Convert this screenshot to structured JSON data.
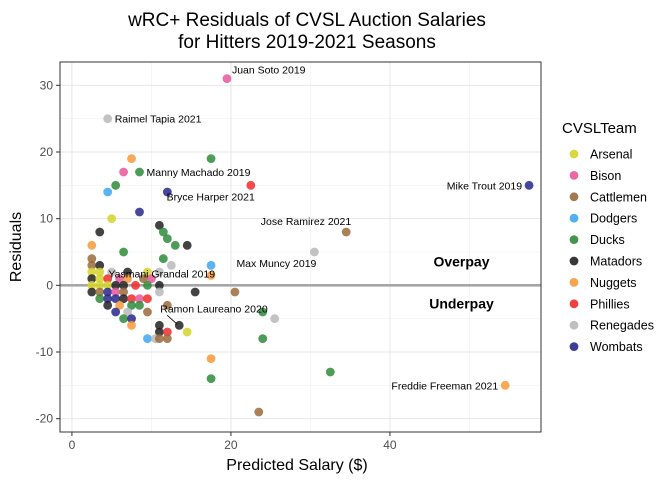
{
  "chart_data": {
    "type": "scatter",
    "title": "wRC+ Residuals of CVSL Auction Salaries",
    "subtitle": "for Hitters 2019-2021 Seasons",
    "xlabel": "Predicted Salary ($)",
    "ylabel": "Residuals",
    "xlim": [
      -1.5,
      59
    ],
    "ylim": [
      -22,
      33.5
    ],
    "x_ticks": [
      0,
      20,
      40
    ],
    "y_ticks": [
      -20,
      -10,
      0,
      10,
      20,
      30
    ],
    "grid": true,
    "reference_line_y": 0,
    "legend": {
      "title": "CVSLTeam",
      "placement": "right",
      "entries": [
        {
          "name": "Arsenal",
          "color": "#d4d42a"
        },
        {
          "name": "Bison",
          "color": "#e8579a"
        },
        {
          "name": "Cattlemen",
          "color": "#9b6a3c"
        },
        {
          "name": "Dodgers",
          "color": "#3fa6f0"
        },
        {
          "name": "Ducks",
          "color": "#2e8b3a"
        },
        {
          "name": "Matadors",
          "color": "#222222"
        },
        {
          "name": "Nuggets",
          "color": "#f59a3a"
        },
        {
          "name": "Phillies",
          "color": "#ee2b2b"
        },
        {
          "name": "Renegades",
          "color": "#b8b8b8"
        },
        {
          "name": "Wombats",
          "color": "#27288c"
        }
      ]
    },
    "zone_labels": [
      {
        "text": "Overpay",
        "x": 49,
        "y": 2.8
      },
      {
        "text": "Underpay",
        "x": 49,
        "y": -3.5
      }
    ],
    "points": [
      {
        "x": 19.5,
        "y": 31,
        "team": "Bison",
        "label": "Juan Soto 2019"
      },
      {
        "x": 4.5,
        "y": 25,
        "team": "Renegades",
        "label": "Raimel Tapia 2021"
      },
      {
        "x": 7.5,
        "y": 19,
        "team": "Nuggets"
      },
      {
        "x": 17.5,
        "y": 19,
        "team": "Ducks"
      },
      {
        "x": 6.5,
        "y": 17,
        "team": "Bison"
      },
      {
        "x": 8.5,
        "y": 17,
        "team": "Ducks",
        "label": "Manny Machado 2019"
      },
      {
        "x": 5.5,
        "y": 15,
        "team": "Ducks"
      },
      {
        "x": 4.5,
        "y": 14,
        "team": "Dodgers"
      },
      {
        "x": 12,
        "y": 14,
        "team": "Wombats"
      },
      {
        "x": 22.5,
        "y": 15,
        "team": "Phillies",
        "label": "Bryce Harper 2021"
      },
      {
        "x": 57.5,
        "y": 15,
        "team": "Wombats",
        "label": "Mike Trout 2019"
      },
      {
        "x": 8.5,
        "y": 11,
        "team": "Wombats"
      },
      {
        "x": 5,
        "y": 10,
        "team": "Arsenal"
      },
      {
        "x": 3.5,
        "y": 8,
        "team": "Matadors"
      },
      {
        "x": 11,
        "y": 9,
        "team": "Matadors"
      },
      {
        "x": 11.5,
        "y": 8,
        "team": "Ducks"
      },
      {
        "x": 12,
        "y": 7,
        "team": "Ducks"
      },
      {
        "x": 13,
        "y": 6,
        "team": "Ducks"
      },
      {
        "x": 14.5,
        "y": 6,
        "team": "Matadors"
      },
      {
        "x": 34.5,
        "y": 8,
        "team": "Cattlemen",
        "label": "Jose Ramirez 2021"
      },
      {
        "x": 2.5,
        "y": 6,
        "team": "Nuggets"
      },
      {
        "x": 6.5,
        "y": 5,
        "team": "Ducks"
      },
      {
        "x": 30.5,
        "y": 5,
        "team": "Renegades",
        "label": "Max Muncy 2019"
      },
      {
        "x": 2.5,
        "y": 4,
        "team": "Cattlemen"
      },
      {
        "x": 2.5,
        "y": 3,
        "team": "Cattlemen"
      },
      {
        "x": 3.5,
        "y": 3,
        "team": "Matadors"
      },
      {
        "x": 11.5,
        "y": 4,
        "team": "Ducks"
      },
      {
        "x": 12.5,
        "y": 3,
        "team": "Renegades"
      },
      {
        "x": 17.5,
        "y": 3,
        "team": "Dodgers"
      },
      {
        "x": 2.5,
        "y": 2,
        "team": "Arsenal"
      },
      {
        "x": 3.5,
        "y": 2,
        "team": "Arsenal"
      },
      {
        "x": 5,
        "y": 2,
        "team": "Renegades"
      },
      {
        "x": 7,
        "y": 2,
        "team": "Matadors"
      },
      {
        "x": 9.5,
        "y": 2,
        "team": "Arsenal"
      },
      {
        "x": 11,
        "y": 2,
        "team": "Renegades"
      },
      {
        "x": 17.5,
        "y": 1.5,
        "team": "Nuggets",
        "label": "Yasmani Grandal 2019"
      },
      {
        "x": 2.5,
        "y": 1,
        "team": "Matadors"
      },
      {
        "x": 3.5,
        "y": 1,
        "team": "Arsenal"
      },
      {
        "x": 4.5,
        "y": 1,
        "team": "Phillies"
      },
      {
        "x": 6,
        "y": 1,
        "team": "Bison"
      },
      {
        "x": 7,
        "y": 1,
        "team": "Nuggets"
      },
      {
        "x": 9,
        "y": 1,
        "team": "Cattlemen"
      },
      {
        "x": 10,
        "y": 1,
        "team": "Bison"
      },
      {
        "x": 2.5,
        "y": 0,
        "team": "Arsenal"
      },
      {
        "x": 3.5,
        "y": 0,
        "team": "Arsenal"
      },
      {
        "x": 4.5,
        "y": 0,
        "team": "Arsenal"
      },
      {
        "x": 5.5,
        "y": 0,
        "team": "Matadors"
      },
      {
        "x": 6.5,
        "y": 0,
        "team": "Matadors"
      },
      {
        "x": 8,
        "y": 0,
        "team": "Phillies"
      },
      {
        "x": 9.5,
        "y": 0,
        "team": "Ducks"
      },
      {
        "x": 11,
        "y": 0,
        "team": "Matadors"
      },
      {
        "x": 2.5,
        "y": -1,
        "team": "Matadors"
      },
      {
        "x": 3.5,
        "y": -1,
        "team": "Cattlemen"
      },
      {
        "x": 4.5,
        "y": -1,
        "team": "Wombats"
      },
      {
        "x": 5.5,
        "y": -1,
        "team": "Bison"
      },
      {
        "x": 6.5,
        "y": -1,
        "team": "Cattlemen"
      },
      {
        "x": 11,
        "y": -1,
        "team": "Renegades"
      },
      {
        "x": 15.5,
        "y": -1,
        "team": "Matadors"
      },
      {
        "x": 20.5,
        "y": -1,
        "team": "Cattlemen"
      },
      {
        "x": 3.5,
        "y": -2,
        "team": "Ducks"
      },
      {
        "x": 4.5,
        "y": -2,
        "team": "Wombats"
      },
      {
        "x": 5.5,
        "y": -2,
        "team": "Wombats"
      },
      {
        "x": 6.5,
        "y": -2,
        "team": "Matadors"
      },
      {
        "x": 7.5,
        "y": -2,
        "team": "Phillies"
      },
      {
        "x": 8.5,
        "y": -2,
        "team": "Bison"
      },
      {
        "x": 9.5,
        "y": -2,
        "team": "Phillies"
      },
      {
        "x": 4.5,
        "y": -3,
        "team": "Matadors"
      },
      {
        "x": 6,
        "y": -3,
        "team": "Nuggets"
      },
      {
        "x": 7.5,
        "y": -3,
        "team": "Ducks"
      },
      {
        "x": 8.5,
        "y": -3,
        "team": "Ducks"
      },
      {
        "x": 12,
        "y": -3,
        "team": "Cattlemen"
      },
      {
        "x": 5.5,
        "y": -4,
        "team": "Wombats"
      },
      {
        "x": 7,
        "y": -4,
        "team": "Renegades"
      },
      {
        "x": 9.5,
        "y": -4,
        "team": "Cattlemen"
      },
      {
        "x": 24,
        "y": -4,
        "team": "Ducks"
      },
      {
        "x": 6.5,
        "y": -5,
        "team": "Ducks"
      },
      {
        "x": 7.5,
        "y": -5,
        "team": "Wombats"
      },
      {
        "x": 25.5,
        "y": -5,
        "team": "Renegades"
      },
      {
        "x": 7.5,
        "y": -6,
        "team": "Nuggets"
      },
      {
        "x": 11,
        "y": -6,
        "team": "Matadors"
      },
      {
        "x": 13.5,
        "y": -6,
        "team": "Matadors",
        "label": "Ramon Laureano 2020"
      },
      {
        "x": 11,
        "y": -7,
        "team": "Matadors"
      },
      {
        "x": 12,
        "y": -7,
        "team": "Phillies"
      },
      {
        "x": 14.5,
        "y": -7,
        "team": "Arsenal"
      },
      {
        "x": 9.5,
        "y": -8,
        "team": "Dodgers"
      },
      {
        "x": 10.5,
        "y": -8,
        "team": "Renegades"
      },
      {
        "x": 11,
        "y": -8,
        "team": "Cattlemen"
      },
      {
        "x": 12,
        "y": -8,
        "team": "Cattlemen"
      },
      {
        "x": 24,
        "y": -8,
        "team": "Ducks"
      },
      {
        "x": 17.5,
        "y": -11,
        "team": "Nuggets"
      },
      {
        "x": 32.5,
        "y": -13,
        "team": "Ducks"
      },
      {
        "x": 17.5,
        "y": -14,
        "team": "Ducks"
      },
      {
        "x": 54.5,
        "y": -15,
        "team": "Nuggets",
        "label": "Freddie Freeman 2021"
      },
      {
        "x": 23.5,
        "y": -19,
        "team": "Cattlemen"
      }
    ]
  }
}
